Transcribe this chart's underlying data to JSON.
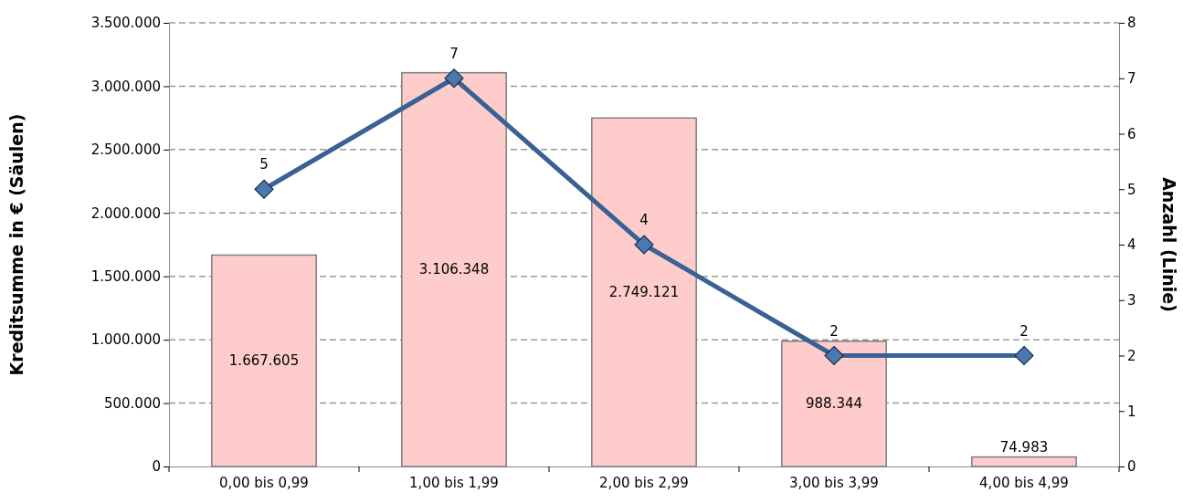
{
  "chart_data": {
    "type": "bar",
    "ylabel": "Kreditsumme in € (Säulen)",
    "y2label": "Anzahl (Linie)",
    "categories": [
      "0,00 bis 0,99",
      "1,00 bis 1,99",
      "2,00 bis 2,99",
      "3,00 bis 3,99",
      "4,00 bis 4,99"
    ],
    "series": [
      {
        "color": "#ffcccc",
        "values": [
          1667605,
          3106348,
          2749121,
          988344,
          74983
        ],
        "value_labels": [
          "1.667.605",
          "3.106.348",
          "2.749.121",
          "988.344",
          "74.983"
        ]
      },
      {
        "type": "line",
        "axis": "y2",
        "color": "#3a6194",
        "marker": "diamond",
        "line_style": "solid",
        "values": [
          5,
          7,
          4,
          2,
          2
        ],
        "value_labels": [
          "5",
          "7",
          "4",
          "2",
          "2"
        ]
      }
    ],
    "ylim": [
      0,
      3500000
    ],
    "yticks": [
      {
        "value": 0,
        "label": "0"
      },
      {
        "value": 500000,
        "label": "500.000"
      },
      {
        "value": 1000000,
        "label": "1.000.000"
      },
      {
        "value": 1500000,
        "label": "1.500.000"
      },
      {
        "value": 2000000,
        "label": "2.000.000"
      },
      {
        "value": 2500000,
        "label": "2.500.000"
      },
      {
        "value": 3000000,
        "label": "3.000.000"
      },
      {
        "value": 3500000,
        "label": "3.500.000"
      }
    ],
    "y2lim": [
      0,
      8
    ],
    "y2ticks": [
      0,
      1,
      2,
      3,
      4,
      5,
      6,
      7,
      8
    ],
    "grid": "y"
  }
}
